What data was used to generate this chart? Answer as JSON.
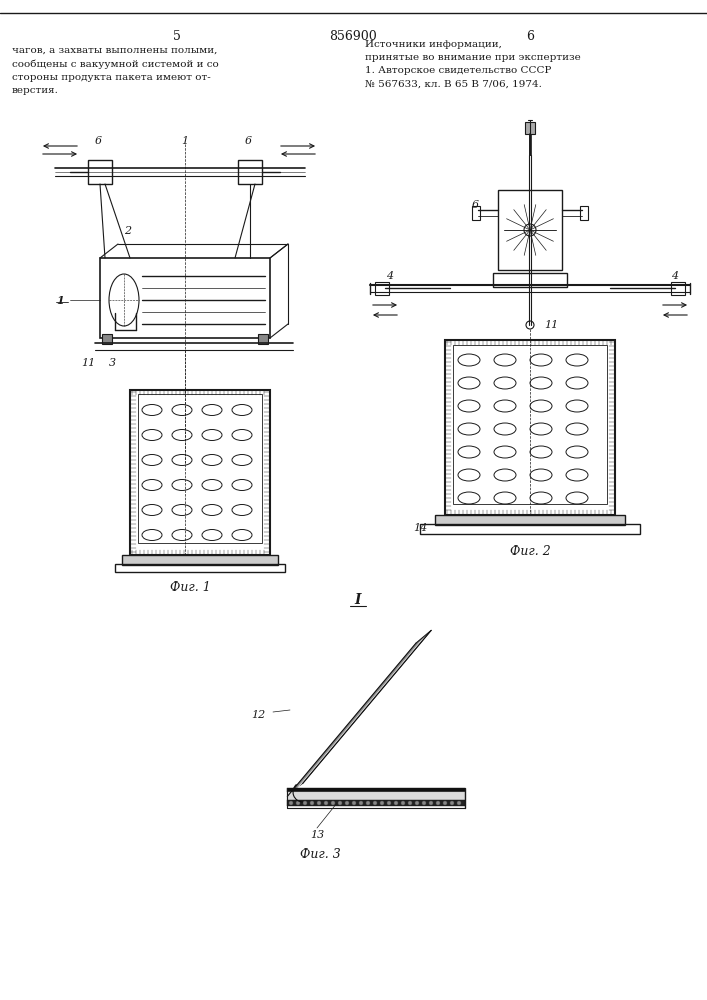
{
  "bg_color": "#ffffff",
  "line_color": "#1a1a1a",
  "page_width": 7.07,
  "page_height": 10.0,
  "left_col": "чагов, а захваты выполнены полыми,\nсообщены с вакуумной системой и со\nстороны продукта пакета имеют от-\nверстия.",
  "right_col": "Источники информации,\nпринятые во внимание при экспертизе\n1. Авторское свидетельство СССР\n№ 567633, кл. В 65 В 7/06, 1974.",
  "page_num_left": "5",
  "patent_num": "856900",
  "page_num_right": "6",
  "fig1_caption": "Фиг. 1",
  "fig2_caption": "Фиг. 2",
  "fig3_caption": "Фиг. 3",
  "fig3_label": "I"
}
